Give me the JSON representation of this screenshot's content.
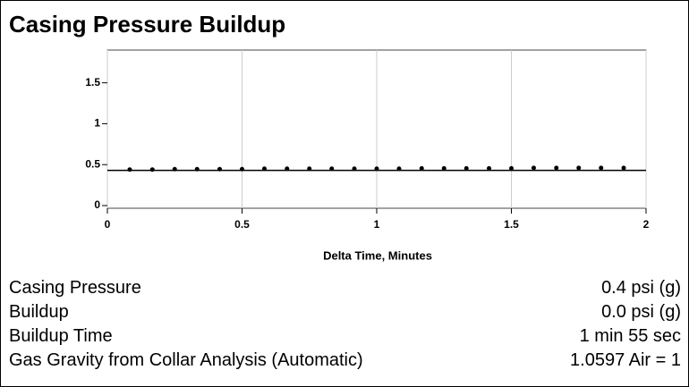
{
  "header": {
    "title": "Casing Pressure Buildup"
  },
  "chart_data": {
    "type": "scatter",
    "xlabel": "Delta Time, Minutes",
    "series": [
      {
        "style": "markers",
        "color": "#000000",
        "x": [
          0.083,
          0.167,
          0.25,
          0.333,
          0.417,
          0.5,
          0.583,
          0.667,
          0.75,
          0.833,
          0.917,
          1,
          1.083,
          1.167,
          1.25,
          1.333,
          1.417,
          1.5,
          1.583,
          1.667,
          1.75,
          1.833,
          1.917
        ],
        "values": [
          0.44,
          0.44,
          0.445,
          0.445,
          0.445,
          0.445,
          0.45,
          0.45,
          0.45,
          0.45,
          0.45,
          0.45,
          0.45,
          0.455,
          0.455,
          0.455,
          0.455,
          0.455,
          0.46,
          0.46,
          0.46,
          0.46,
          0.46
        ]
      },
      {
        "style": "line",
        "color": "#000000",
        "x": [
          0,
          2
        ],
        "values": [
          0.43,
          0.43
        ]
      }
    ],
    "xlim": [
      0,
      2
    ],
    "xticks": [
      0,
      0.5,
      1,
      1.5,
      2
    ],
    "ylim": [
      0,
      1.9
    ],
    "yticks": [
      0,
      0.5,
      1,
      1.5
    ],
    "grid": true
  },
  "table": {
    "rows": [
      [
        "Casing Pressure",
        "0.4 psi (g)"
      ],
      [
        "Buildup",
        "0.0 psi (g)"
      ],
      [
        "Buildup Time",
        "1 min 55 sec"
      ],
      [
        "Gas Gravity from Collar Analysis (Automatic)",
        "1.0597 Air = 1"
      ]
    ]
  }
}
